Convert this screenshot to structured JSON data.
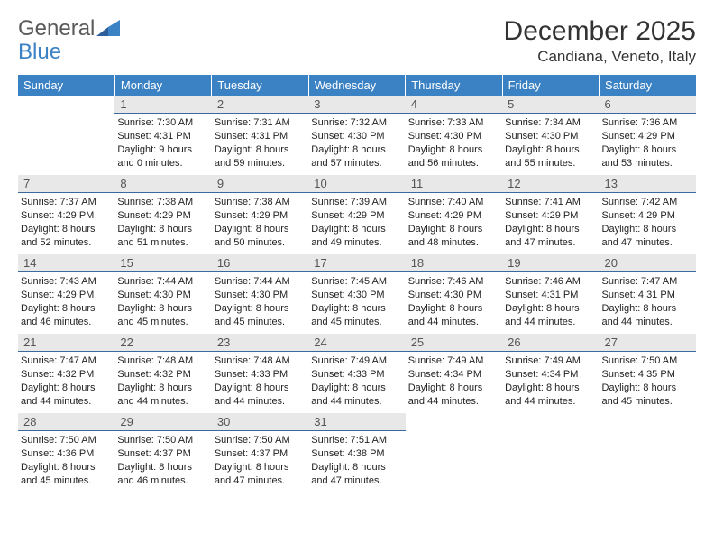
{
  "brand": {
    "part1": "General",
    "part2": "Blue"
  },
  "title": "December 2025",
  "location": "Candiana, Veneto, Italy",
  "header_bg": "#3b82c4",
  "daynum_bg": "#e8e8e8",
  "daynum_border": "#3b6a9a",
  "weekdays": [
    "Sunday",
    "Monday",
    "Tuesday",
    "Wednesday",
    "Thursday",
    "Friday",
    "Saturday"
  ],
  "weeks": [
    [
      {
        "n": "",
        "sr": "",
        "ss": "",
        "dl": ""
      },
      {
        "n": "1",
        "sr": "Sunrise: 7:30 AM",
        "ss": "Sunset: 4:31 PM",
        "dl": "Daylight: 9 hours and 0 minutes."
      },
      {
        "n": "2",
        "sr": "Sunrise: 7:31 AM",
        "ss": "Sunset: 4:31 PM",
        "dl": "Daylight: 8 hours and 59 minutes."
      },
      {
        "n": "3",
        "sr": "Sunrise: 7:32 AM",
        "ss": "Sunset: 4:30 PM",
        "dl": "Daylight: 8 hours and 57 minutes."
      },
      {
        "n": "4",
        "sr": "Sunrise: 7:33 AM",
        "ss": "Sunset: 4:30 PM",
        "dl": "Daylight: 8 hours and 56 minutes."
      },
      {
        "n": "5",
        "sr": "Sunrise: 7:34 AM",
        "ss": "Sunset: 4:30 PM",
        "dl": "Daylight: 8 hours and 55 minutes."
      },
      {
        "n": "6",
        "sr": "Sunrise: 7:36 AM",
        "ss": "Sunset: 4:29 PM",
        "dl": "Daylight: 8 hours and 53 minutes."
      }
    ],
    [
      {
        "n": "7",
        "sr": "Sunrise: 7:37 AM",
        "ss": "Sunset: 4:29 PM",
        "dl": "Daylight: 8 hours and 52 minutes."
      },
      {
        "n": "8",
        "sr": "Sunrise: 7:38 AM",
        "ss": "Sunset: 4:29 PM",
        "dl": "Daylight: 8 hours and 51 minutes."
      },
      {
        "n": "9",
        "sr": "Sunrise: 7:38 AM",
        "ss": "Sunset: 4:29 PM",
        "dl": "Daylight: 8 hours and 50 minutes."
      },
      {
        "n": "10",
        "sr": "Sunrise: 7:39 AM",
        "ss": "Sunset: 4:29 PM",
        "dl": "Daylight: 8 hours and 49 minutes."
      },
      {
        "n": "11",
        "sr": "Sunrise: 7:40 AM",
        "ss": "Sunset: 4:29 PM",
        "dl": "Daylight: 8 hours and 48 minutes."
      },
      {
        "n": "12",
        "sr": "Sunrise: 7:41 AM",
        "ss": "Sunset: 4:29 PM",
        "dl": "Daylight: 8 hours and 47 minutes."
      },
      {
        "n": "13",
        "sr": "Sunrise: 7:42 AM",
        "ss": "Sunset: 4:29 PM",
        "dl": "Daylight: 8 hours and 47 minutes."
      }
    ],
    [
      {
        "n": "14",
        "sr": "Sunrise: 7:43 AM",
        "ss": "Sunset: 4:29 PM",
        "dl": "Daylight: 8 hours and 46 minutes."
      },
      {
        "n": "15",
        "sr": "Sunrise: 7:44 AM",
        "ss": "Sunset: 4:30 PM",
        "dl": "Daylight: 8 hours and 45 minutes."
      },
      {
        "n": "16",
        "sr": "Sunrise: 7:44 AM",
        "ss": "Sunset: 4:30 PM",
        "dl": "Daylight: 8 hours and 45 minutes."
      },
      {
        "n": "17",
        "sr": "Sunrise: 7:45 AM",
        "ss": "Sunset: 4:30 PM",
        "dl": "Daylight: 8 hours and 45 minutes."
      },
      {
        "n": "18",
        "sr": "Sunrise: 7:46 AM",
        "ss": "Sunset: 4:30 PM",
        "dl": "Daylight: 8 hours and 44 minutes."
      },
      {
        "n": "19",
        "sr": "Sunrise: 7:46 AM",
        "ss": "Sunset: 4:31 PM",
        "dl": "Daylight: 8 hours and 44 minutes."
      },
      {
        "n": "20",
        "sr": "Sunrise: 7:47 AM",
        "ss": "Sunset: 4:31 PM",
        "dl": "Daylight: 8 hours and 44 minutes."
      }
    ],
    [
      {
        "n": "21",
        "sr": "Sunrise: 7:47 AM",
        "ss": "Sunset: 4:32 PM",
        "dl": "Daylight: 8 hours and 44 minutes."
      },
      {
        "n": "22",
        "sr": "Sunrise: 7:48 AM",
        "ss": "Sunset: 4:32 PM",
        "dl": "Daylight: 8 hours and 44 minutes."
      },
      {
        "n": "23",
        "sr": "Sunrise: 7:48 AM",
        "ss": "Sunset: 4:33 PM",
        "dl": "Daylight: 8 hours and 44 minutes."
      },
      {
        "n": "24",
        "sr": "Sunrise: 7:49 AM",
        "ss": "Sunset: 4:33 PM",
        "dl": "Daylight: 8 hours and 44 minutes."
      },
      {
        "n": "25",
        "sr": "Sunrise: 7:49 AM",
        "ss": "Sunset: 4:34 PM",
        "dl": "Daylight: 8 hours and 44 minutes."
      },
      {
        "n": "26",
        "sr": "Sunrise: 7:49 AM",
        "ss": "Sunset: 4:34 PM",
        "dl": "Daylight: 8 hours and 44 minutes."
      },
      {
        "n": "27",
        "sr": "Sunrise: 7:50 AM",
        "ss": "Sunset: 4:35 PM",
        "dl": "Daylight: 8 hours and 45 minutes."
      }
    ],
    [
      {
        "n": "28",
        "sr": "Sunrise: 7:50 AM",
        "ss": "Sunset: 4:36 PM",
        "dl": "Daylight: 8 hours and 45 minutes."
      },
      {
        "n": "29",
        "sr": "Sunrise: 7:50 AM",
        "ss": "Sunset: 4:37 PM",
        "dl": "Daylight: 8 hours and 46 minutes."
      },
      {
        "n": "30",
        "sr": "Sunrise: 7:50 AM",
        "ss": "Sunset: 4:37 PM",
        "dl": "Daylight: 8 hours and 47 minutes."
      },
      {
        "n": "31",
        "sr": "Sunrise: 7:51 AM",
        "ss": "Sunset: 4:38 PM",
        "dl": "Daylight: 8 hours and 47 minutes."
      },
      {
        "n": "",
        "sr": "",
        "ss": "",
        "dl": ""
      },
      {
        "n": "",
        "sr": "",
        "ss": "",
        "dl": ""
      },
      {
        "n": "",
        "sr": "",
        "ss": "",
        "dl": ""
      }
    ]
  ]
}
